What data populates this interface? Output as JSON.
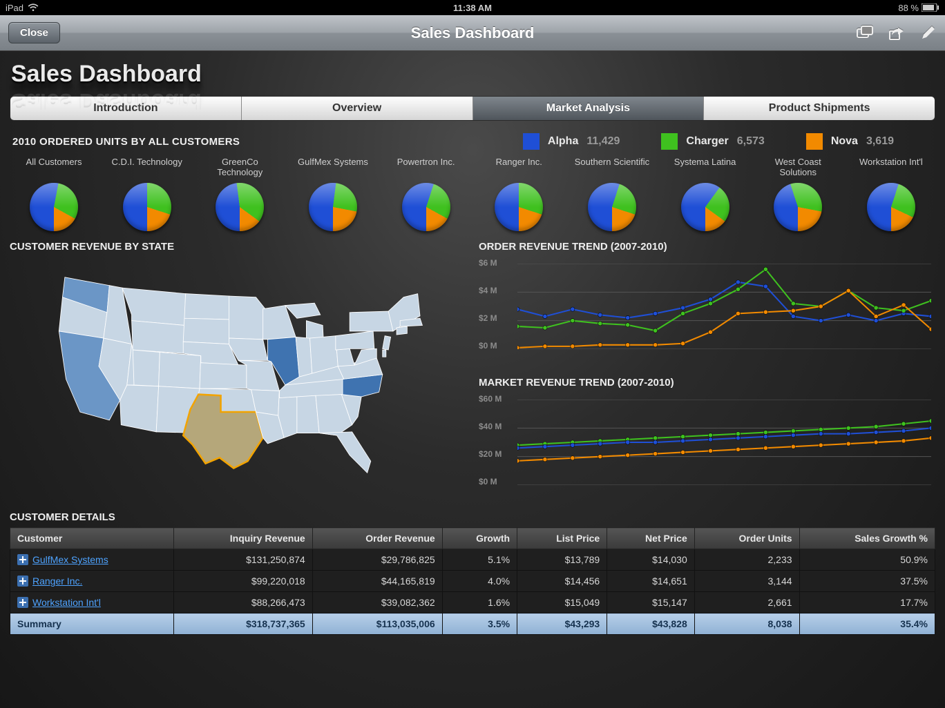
{
  "status_bar": {
    "device": "iPad",
    "time": "11:38 AM",
    "battery_pct": "88 %"
  },
  "nav": {
    "close_label": "Close",
    "title": "Sales Dashboard"
  },
  "page_heading": "Sales Dashboard",
  "tabs": [
    {
      "label": "Introduction",
      "selected": false
    },
    {
      "label": "Overview",
      "selected": false
    },
    {
      "label": "Market Analysis",
      "selected": true
    },
    {
      "label": "Product Shipments",
      "selected": false
    }
  ],
  "ordered_units": {
    "title": "2010 ORDERED UNITS BY ALL CUSTOMERS",
    "legend": [
      {
        "label": "Alpha",
        "value": "11,429",
        "color": "#1f4fd6"
      },
      {
        "label": "Charger",
        "value": "6,573",
        "color": "#3fc11f"
      },
      {
        "label": "Nova",
        "value": "3,619",
        "color": "#f28a00"
      }
    ],
    "customers": [
      {
        "name": "All Customers",
        "slices": [
          53,
          30,
          17
        ]
      },
      {
        "name": "C.D.I. Technology",
        "slices": [
          50,
          30,
          20
        ]
      },
      {
        "name": "GreenCo Technology",
        "slices": [
          48,
          37,
          15
        ]
      },
      {
        "name": "GulfMex Systems",
        "slices": [
          52,
          26,
          22
        ]
      },
      {
        "name": "Powertron Inc.",
        "slices": [
          55,
          28,
          17
        ]
      },
      {
        "name": "Ranger Inc.",
        "slices": [
          50,
          30,
          20
        ]
      },
      {
        "name": "Southern Scientific",
        "slices": [
          55,
          25,
          20
        ]
      },
      {
        "name": "Systema Latina",
        "slices": [
          60,
          25,
          15
        ]
      },
      {
        "name": "West Coast Solutions",
        "slices": [
          45,
          33,
          22
        ]
      },
      {
        "name": "Workstation Int'l",
        "slices": [
          55,
          27,
          18
        ]
      }
    ],
    "slice_colors": [
      "#1f4fd6",
      "#3fc11f",
      "#f28a00"
    ]
  },
  "revenue_by_state": {
    "title": "CUSTOMER REVENUE BY STATE",
    "default_fill": "#c7d6e4",
    "stroke": "#ffffff",
    "highlighted_states": {
      "WA": "#6b96c6",
      "CA": "#6b96c6",
      "IL": "#3f73b0",
      "NC": "#3f73b0"
    },
    "selected_state": {
      "code": "TX",
      "fill": "#b5a77a",
      "outline": "#f2a300"
    }
  },
  "order_revenue_trend": {
    "title": "ORDER REVENUE TREND (2007-2010)",
    "type": "line",
    "ylim": [
      0,
      6
    ],
    "ytick_step": 2,
    "y_prefix": "$",
    "y_suffix": " M",
    "x_count": 16,
    "series": [
      {
        "name": "Alpha",
        "color": "#1f4fd6",
        "values": [
          2.8,
          2.3,
          2.8,
          2.4,
          2.2,
          2.5,
          2.9,
          3.5,
          4.7,
          4.4,
          2.3,
          2.0,
          2.4,
          2.0,
          2.5,
          2.3
        ]
      },
      {
        "name": "Charger",
        "color": "#3fc11f",
        "values": [
          1.6,
          1.5,
          2.0,
          1.8,
          1.7,
          1.3,
          2.5,
          3.2,
          4.2,
          5.6,
          3.2,
          3.0,
          4.1,
          2.9,
          2.7,
          3.4
        ]
      },
      {
        "name": "Nova",
        "color": "#f28a00",
        "values": [
          0.1,
          0.2,
          0.2,
          0.3,
          0.3,
          0.3,
          0.4,
          1.2,
          2.5,
          2.6,
          2.7,
          3.0,
          4.1,
          2.3,
          3.1,
          1.4
        ]
      }
    ],
    "grid_color": "#555555",
    "axis_color": "#888888",
    "marker_radius": 3,
    "line_width": 2
  },
  "market_revenue_trend": {
    "title": "MARKET REVENUE TREND (2007-2010)",
    "type": "line",
    "ylim": [
      0,
      60
    ],
    "ytick_step": 20,
    "y_prefix": "$",
    "y_suffix": " M",
    "x_count": 16,
    "series": [
      {
        "name": "Charger",
        "color": "#3fc11f",
        "values": [
          28,
          29,
          30,
          31,
          32,
          33,
          34,
          35,
          36,
          37,
          38,
          39,
          40,
          41,
          43,
          45
        ]
      },
      {
        "name": "Alpha",
        "color": "#1f4fd6",
        "values": [
          26,
          27,
          28,
          29,
          30,
          30,
          31,
          32,
          33,
          34,
          35,
          36,
          36,
          37,
          38,
          40
        ]
      },
      {
        "name": "Nova",
        "color": "#f28a00",
        "values": [
          17,
          18,
          19,
          20,
          21,
          22,
          23,
          24,
          25,
          26,
          27,
          28,
          29,
          30,
          31,
          33
        ]
      }
    ],
    "grid_color": "#555555",
    "axis_color": "#888888",
    "marker_radius": 3,
    "line_width": 2
  },
  "customer_details": {
    "title": "CUSTOMER DETAILS",
    "columns": [
      "Customer",
      "Inquiry Revenue",
      "Order Revenue",
      "Growth",
      "List Price",
      "Net Price",
      "Order Units",
      "Sales Growth %"
    ],
    "col_align": [
      "txt",
      "num",
      "num",
      "num",
      "num",
      "num",
      "num",
      "num"
    ],
    "rows": [
      {
        "customer": "GulfMex Systems",
        "inquiry": "$131,250,874",
        "order": "$29,786,825",
        "growth": "5.1%",
        "list": "$13,789",
        "net": "$14,030",
        "units": "2,233",
        "sales_growth": "50.9%"
      },
      {
        "customer": "Ranger Inc.",
        "inquiry": "$99,220,018",
        "order": "$44,165,819",
        "growth": "4.0%",
        "list": "$14,456",
        "net": "$14,651",
        "units": "3,144",
        "sales_growth": "37.5%"
      },
      {
        "customer": "Workstation Int'l",
        "inquiry": "$88,266,473",
        "order": "$39,082,362",
        "growth": "1.6%",
        "list": "$15,049",
        "net": "$15,147",
        "units": "2,661",
        "sales_growth": "17.7%"
      }
    ],
    "summary": {
      "label": "Summary",
      "inquiry": "$318,737,365",
      "order": "$113,035,006",
      "growth": "3.5%",
      "list": "$43,293",
      "net": "$43,828",
      "units": "8,038",
      "sales_growth": "35.4%"
    }
  }
}
